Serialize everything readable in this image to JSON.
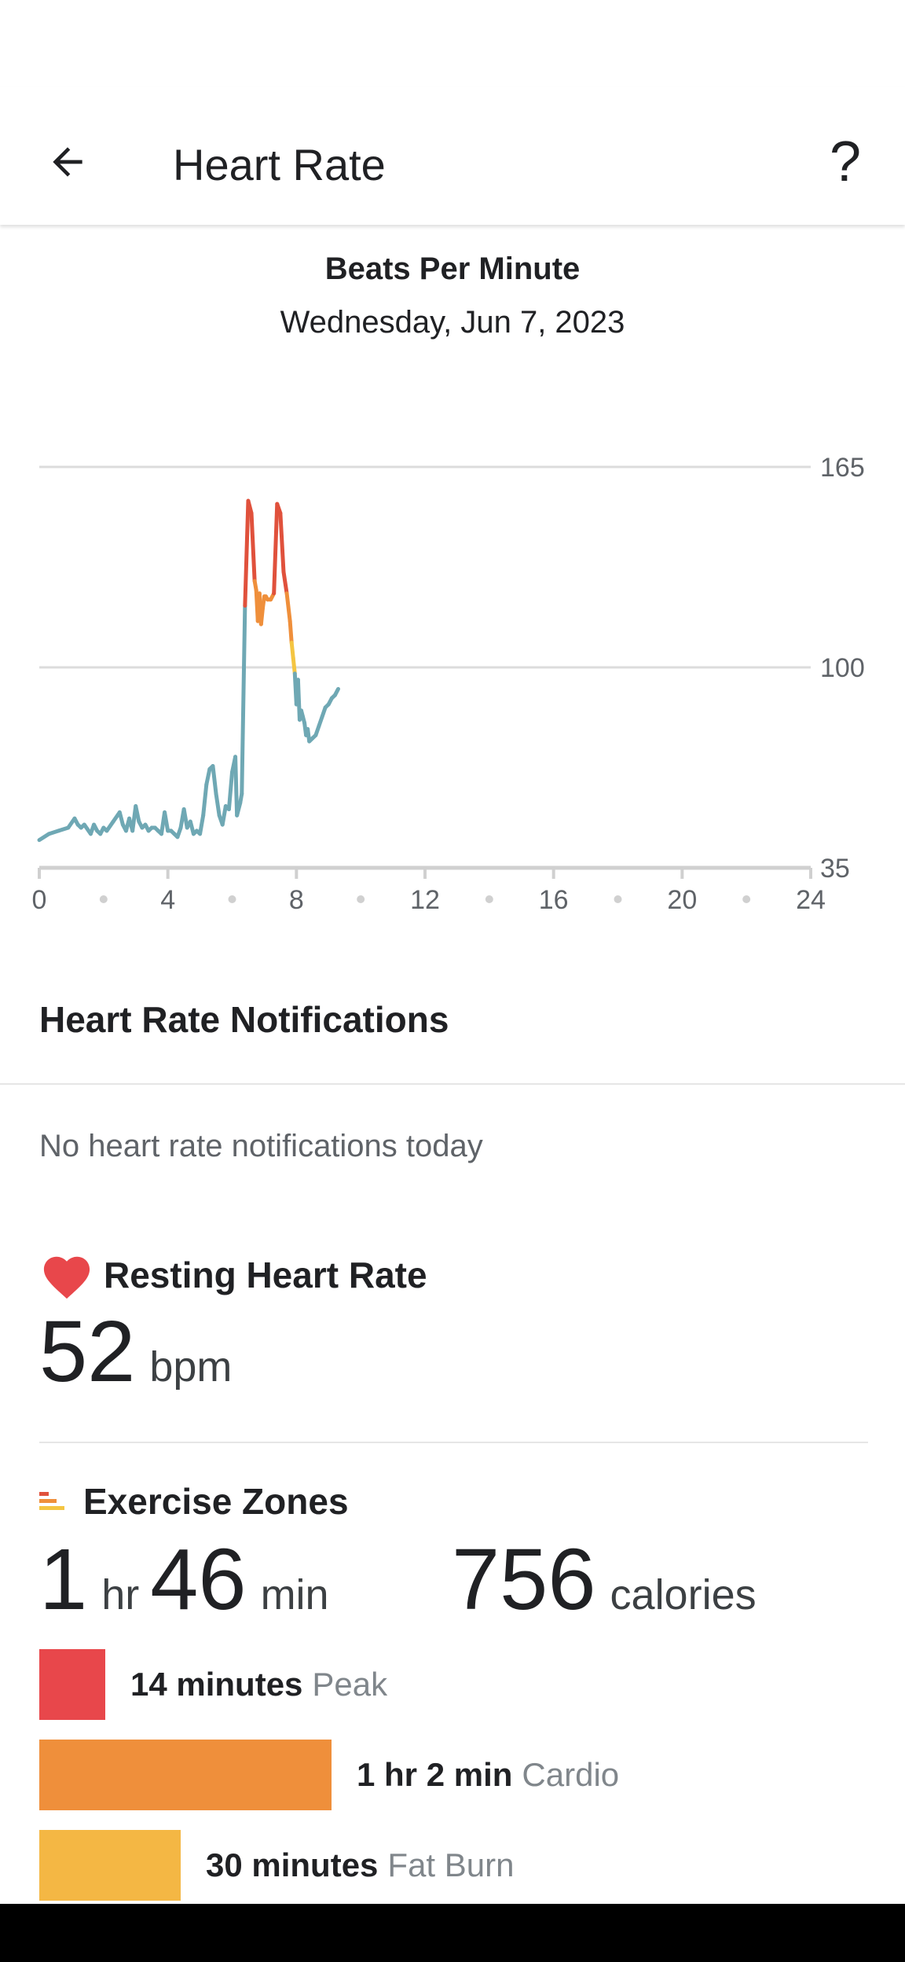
{
  "appbar": {
    "title": "Heart Rate",
    "help_label": "?"
  },
  "chart_header": {
    "title": "Beats Per Minute",
    "date": "Wednesday, Jun 7, 2023"
  },
  "chart_data": {
    "type": "line",
    "title": "Beats Per Minute",
    "xlabel": "",
    "ylabel": "",
    "xlim": [
      0,
      24
    ],
    "ylim": [
      35,
      165
    ],
    "y_ticks": [
      35,
      100,
      165
    ],
    "x_tick_labels": [
      0,
      4,
      8,
      12,
      16,
      20,
      24
    ],
    "x_minor_dots": [
      2,
      6,
      10,
      14,
      18,
      22
    ],
    "grid": true,
    "zone_colors": {
      "normal": "#6fa8b4",
      "fat_burn": "#f4c542",
      "cardio": "#ef8f3b",
      "peak": "#e0513c"
    },
    "zone_thresholds": {
      "fat_burn": 96,
      "cardio": 106,
      "peak": 127
    },
    "series": [
      {
        "x": [
          0.0,
          0.3,
          0.6,
          0.9,
          1.1,
          1.2,
          1.3,
          1.4,
          1.6,
          1.7,
          1.8,
          1.9,
          2.0,
          2.1,
          2.3,
          2.5,
          2.6,
          2.7,
          2.8,
          2.9,
          3.0,
          3.1,
          3.2,
          3.3,
          3.4,
          3.5,
          3.6,
          3.7,
          3.8,
          3.9,
          4.0,
          4.1,
          4.2,
          4.3,
          4.4,
          4.5,
          4.6,
          4.7,
          4.8,
          4.9,
          5.0,
          5.1,
          5.2,
          5.3,
          5.4,
          5.5,
          5.6,
          5.7,
          5.8,
          5.9,
          6.0,
          6.1,
          6.15,
          6.25,
          6.3,
          6.4,
          6.5,
          6.6,
          6.7,
          6.75,
          6.8,
          6.85,
          6.9,
          6.95,
          7.0,
          7.05,
          7.1,
          7.2,
          7.3,
          7.4,
          7.5,
          7.6,
          7.7,
          7.8,
          7.85,
          7.9,
          7.95,
          8.0,
          8.05,
          8.1,
          8.15,
          8.2,
          8.25,
          8.3,
          8.35,
          8.4,
          8.5,
          8.6,
          8.7,
          8.8,
          8.9,
          9.0,
          9.1,
          9.2,
          9.3
        ],
        "y": [
          44,
          46,
          47,
          48,
          51,
          49,
          48,
          49,
          46,
          49,
          47,
          46,
          48,
          47,
          50,
          53,
          49,
          47,
          51,
          47,
          55,
          50,
          48,
          49,
          47,
          48,
          48,
          47,
          46,
          53,
          47,
          47,
          46,
          45,
          48,
          54,
          48,
          50,
          46,
          47,
          46,
          52,
          62,
          67,
          68,
          59,
          52,
          49,
          55,
          54,
          66,
          71,
          52,
          56,
          59,
          120,
          154,
          150,
          128,
          125,
          115,
          124,
          114,
          119,
          123,
          123,
          122,
          122,
          124,
          153,
          150,
          131,
          124,
          115,
          108,
          103,
          98,
          88,
          96,
          83,
          86,
          84,
          82,
          78,
          80,
          76,
          77,
          78,
          81,
          84,
          87,
          88,
          90,
          91,
          93
        ]
      }
    ]
  },
  "notifications": {
    "title": "Heart Rate Notifications",
    "empty_text": "No heart rate notifications today"
  },
  "resting": {
    "title": "Resting Heart Rate",
    "value": "52",
    "unit": "bpm"
  },
  "exercise_zones": {
    "title": "Exercise Zones",
    "hours": "1",
    "hours_unit": "hr",
    "minutes": "46",
    "minutes_unit": "min",
    "calories": "756",
    "calories_unit": "calories",
    "zones": [
      {
        "value": "14 minutes",
        "name": "Peak",
        "color": "#e8474b",
        "minutes": 14
      },
      {
        "value": "1 hr 2 min",
        "name": "Cardio",
        "color": "#ef8f3b",
        "minutes": 62
      },
      {
        "value": "30 minutes",
        "name": "Fat Burn",
        "color": "#f4b744",
        "minutes": 30
      }
    ]
  }
}
